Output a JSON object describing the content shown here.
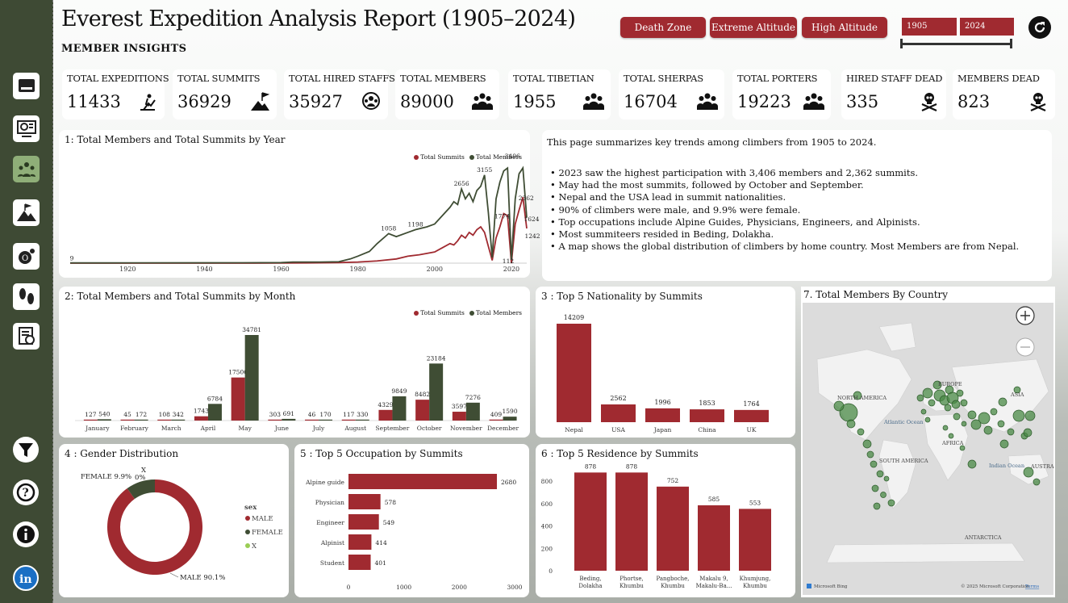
{
  "title": "Everest Expedition Analysis Report (1905–2024)",
  "subtitle": "MEMBER INSIGHTS",
  "filters": [
    "Death Zone",
    "Extreme Altitude",
    "High Altitude"
  ],
  "year_range": {
    "start": "1905",
    "end": "2024"
  },
  "colors": {
    "sidebar": "#3e4a34",
    "accent_red": "#a02a30",
    "accent_green": "#3f4d34",
    "active": "#8fae78"
  },
  "sidebar": [
    "dashboard-icon",
    "analytics-monitor-icon",
    "team-icon",
    "mountain-icon",
    "oxygen-icon",
    "footprints-icon",
    "report-icon",
    "filter-icon",
    "help-icon",
    "info-icon",
    "linkedin-icon"
  ],
  "kpis": [
    {
      "label": "TOTAL EXPEDITIONS",
      "value": "11433",
      "icon": "climber-icon"
    },
    {
      "label": "TOTAL SUMMITS",
      "value": "36929",
      "icon": "summit-flag-icon"
    },
    {
      "label": "TOTAL HIRED STAFFS",
      "value": "35927",
      "icon": "staff-group-icon"
    },
    {
      "label": "TOTAL MEMBERS",
      "value": "89000",
      "icon": "people-icon"
    },
    {
      "label": "TOTAL TIBETIAN",
      "value": "1955",
      "icon": "people-icon"
    },
    {
      "label": "TOTAL SHERPAS",
      "value": "16704",
      "icon": "people-icon"
    },
    {
      "label": "TOTAL PORTERS",
      "value": "19223",
      "icon": "people-icon"
    },
    {
      "label": "HIRED STAFF DEAD",
      "value": "335",
      "icon": "skull-icon"
    },
    {
      "label": "MEMBERS DEAD",
      "value": "823",
      "icon": "skull-icon"
    }
  ],
  "summary": {
    "intro": "This page summarizes key trends among climbers from 1905 to 2024.",
    "bullets": [
      "• 2023 saw the highest participation with 3,406 members and 2,362 summits.",
      "• May had the most summits, followed by October and September.",
      "• Nepal and the USA lead in summit nationalities.",
      "• 90% of climbers were male, and 9.9% were female.",
      "• Top occupations include Alpine Guides, Physicians, Engineers, and Alpinists.",
      "• Most summiteers resided in Beding, Dolakha.",
      "• A map shows the global distribution of climbers by home country. Most Members are from Nepal."
    ]
  },
  "panels": {
    "p1": "1: Total Members and Total Summits by Year",
    "p2": "2: Total Members and Total Summits by Month",
    "p3": "3 : Top 5 Nationality by Summits",
    "p4": "4 : Gender Distribution",
    "p5": "5 : Top 5 Occupation by Summits",
    "p6": "6 : Top 5 Residence by Summits",
    "p7": "7. Total Members By Country"
  },
  "map": {
    "labels": [
      "NORTH AMERICA",
      "Atlantic Ocean",
      "EUROPE",
      "ASIA",
      "AFRICA",
      "SOUTH AMERICA",
      "Indian Ocean",
      "AUSTRA",
      "ANTARCTICA"
    ],
    "credit_left": "Microsoft Bing",
    "credit_right": "© 2025 Microsoft Corporation",
    "terms": "Terms"
  },
  "chart_data": [
    {
      "type": "line",
      "title": "1: Total Members and Total Summits by Year",
      "series_names": [
        "Total Summits",
        "Total Members"
      ],
      "x_ticks": [
        "1920",
        "1940",
        "1960",
        "1980",
        "2000",
        "2020"
      ],
      "xlim": [
        1905,
        2024
      ],
      "members": [
        [
          1905,
          9
        ],
        [
          1921,
          10
        ],
        [
          1940,
          12
        ],
        [
          1950,
          15
        ],
        [
          1960,
          20
        ],
        [
          1963,
          40
        ],
        [
          1970,
          40
        ],
        [
          1975,
          50
        ],
        [
          1978,
          150
        ],
        [
          1980,
          250
        ],
        [
          1983,
          420
        ],
        [
          1985,
          700
        ],
        [
          1988,
          1058
        ],
        [
          1990,
          950
        ],
        [
          1993,
          1100
        ],
        [
          1995,
          1198
        ],
        [
          1998,
          1300
        ],
        [
          2000,
          1400
        ],
        [
          2002,
          1700
        ],
        [
          2004,
          2000
        ],
        [
          2005,
          2200
        ],
        [
          2006,
          2100
        ],
        [
          2007,
          2656
        ],
        [
          2008,
          2300
        ],
        [
          2009,
          2500
        ],
        [
          2010,
          2200
        ],
        [
          2011,
          2600
        ],
        [
          2012,
          2750
        ],
        [
          2013,
          3155
        ],
        [
          2014,
          1800
        ],
        [
          2015,
          200
        ],
        [
          2016,
          2300
        ],
        [
          2017,
          2900
        ],
        [
          2018,
          3300
        ],
        [
          2019,
          3406
        ],
        [
          2020,
          112
        ],
        [
          2021,
          2300
        ],
        [
          2022,
          3200
        ],
        [
          2023,
          3406
        ],
        [
          2024,
          1624
        ]
      ],
      "summits": [
        [
          1905,
          0
        ],
        [
          1953,
          2
        ],
        [
          1960,
          5
        ],
        [
          1970,
          10
        ],
        [
          1975,
          20
        ],
        [
          1980,
          40
        ],
        [
          1985,
          80
        ],
        [
          1990,
          150
        ],
        [
          1993,
          250
        ],
        [
          1996,
          300
        ],
        [
          2000,
          400
        ],
        [
          2002,
          550
        ],
        [
          2004,
          700
        ],
        [
          2005,
          650
        ],
        [
          2006,
          800
        ],
        [
          2007,
          1000
        ],
        [
          2008,
          900
        ],
        [
          2009,
          1100
        ],
        [
          2010,
          1000
        ],
        [
          2011,
          1200
        ],
        [
          2012,
          1300
        ],
        [
          2013,
          1100
        ],
        [
          2014,
          600
        ],
        [
          2015,
          100
        ],
        [
          2016,
          900
        ],
        [
          2017,
          1300
        ],
        [
          2018,
          1774
        ],
        [
          2019,
          1700
        ],
        [
          2020,
          0
        ],
        [
          2021,
          1400
        ],
        [
          2022,
          1900
        ],
        [
          2023,
          2362
        ],
        [
          2024,
          1242
        ]
      ],
      "point_labels": [
        {
          "x": 1905,
          "y": 9,
          "text": "9"
        },
        {
          "x": 1988,
          "y": 1058,
          "text": "1058"
        },
        {
          "x": 1995,
          "y": 1198,
          "text": "1198"
        },
        {
          "x": 2007,
          "y": 2656,
          "text": "2656"
        },
        {
          "x": 2013,
          "y": 3155,
          "text": "3155"
        },
        {
          "x": 2019,
          "y": 3406,
          "text": "3406"
        },
        {
          "x": 2018,
          "y": 1774,
          "text": "1774"
        },
        {
          "x": 2020,
          "y": 112,
          "text": "112"
        },
        {
          "x": 2023,
          "y": 2362,
          "text": "2362"
        },
        {
          "x": 2024,
          "y": 1624,
          "text": "1624"
        },
        {
          "x": 2024,
          "y": 1242,
          "text": "1242"
        }
      ]
    },
    {
      "type": "bar",
      "title": "2: Total Members and Total Summits by Month",
      "categories": [
        "January",
        "February",
        "March",
        "April",
        "May",
        "June",
        "July",
        "August",
        "September",
        "October",
        "November",
        "December"
      ],
      "series": [
        {
          "name": "Total Summits",
          "values": [
            127,
            45,
            108,
            1743,
            17506,
            303,
            46,
            117,
            4329,
            8482,
            3597,
            409
          ]
        },
        {
          "name": "Total Members",
          "values": [
            540,
            172,
            342,
            6784,
            34781,
            691,
            170,
            330,
            9849,
            23184,
            7276,
            1590
          ]
        }
      ]
    },
    {
      "type": "bar",
      "title": "3 : Top 5 Nationality by Summits",
      "categories": [
        "Nepal",
        "USA",
        "Japan",
        "China",
        "UK"
      ],
      "values": [
        14209,
        2562,
        1996,
        1853,
        1764
      ]
    },
    {
      "type": "pie",
      "title": "4 : Gender Distribution",
      "legend_title": "sex",
      "categories": [
        "MALE",
        "FEMALE",
        "X"
      ],
      "values": [
        90.1,
        9.9,
        0
      ],
      "labels": [
        "MALE 90.1%",
        "FEMALE 9.9%",
        "X",
        "0%"
      ]
    },
    {
      "type": "bar",
      "orientation": "horizontal",
      "title": "5 : Top 5 Occupation by Summits",
      "categories": [
        "Alpine guide",
        "Physician",
        "Engineer",
        "Alpinist",
        "Student"
      ],
      "values": [
        2680,
        578,
        549,
        414,
        401
      ],
      "x_ticks": [
        "0",
        "1000",
        "2000",
        "3000"
      ],
      "xlim": [
        0,
        3000
      ]
    },
    {
      "type": "bar",
      "title": "6 : Top 5 Residence by Summits",
      "categories": [
        [
          "Beding,",
          "Dolakha"
        ],
        [
          "Phortse,",
          "Khumbu"
        ],
        [
          "Pangboche,",
          "Khumbu"
        ],
        [
          "Makalu 9,",
          "Makalu-Ba..."
        ],
        [
          "Khumjung,",
          "Khumbu"
        ]
      ],
      "values": [
        878,
        878,
        752,
        585,
        553
      ],
      "y_ticks": [
        "0",
        "200",
        "400",
        "600",
        "800"
      ],
      "ylim": [
        0,
        960
      ]
    }
  ]
}
